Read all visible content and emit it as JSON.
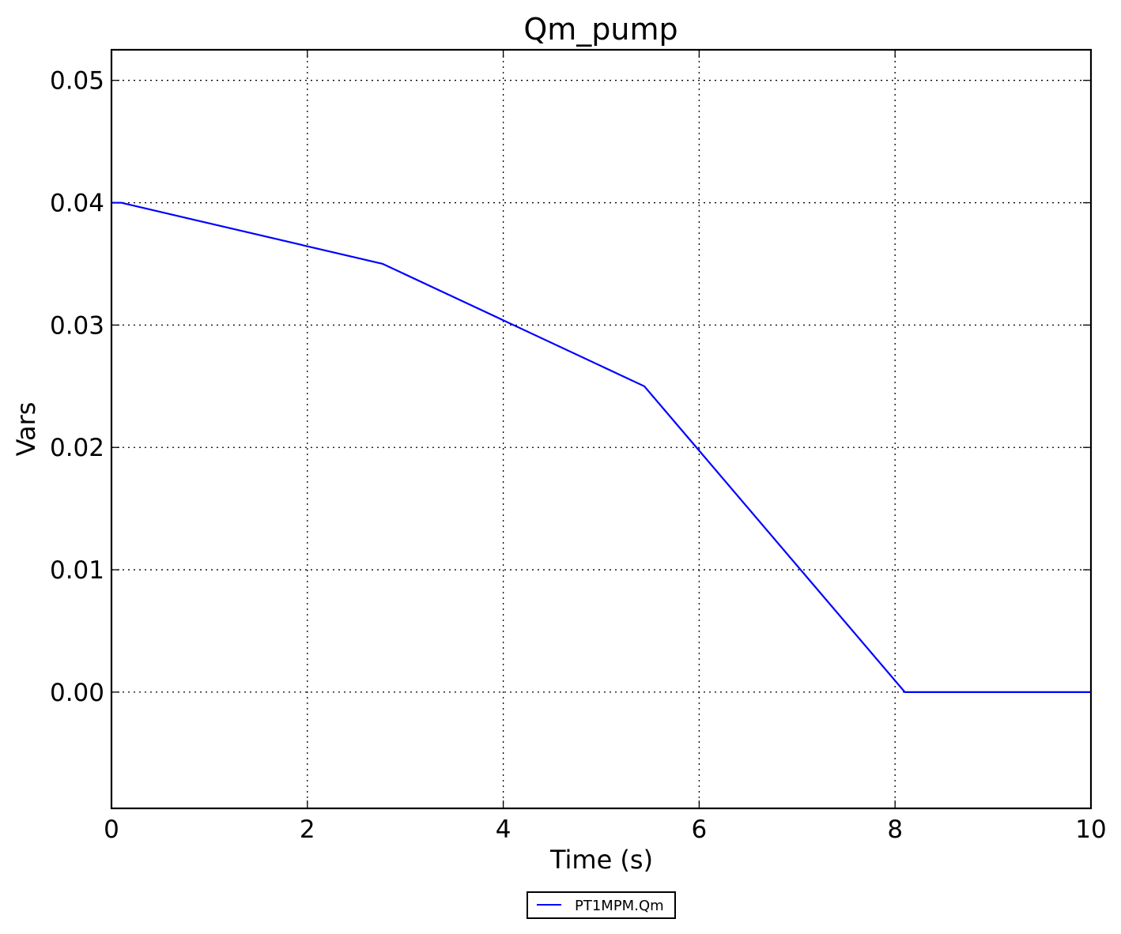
{
  "chart_data": {
    "type": "line",
    "title": "Qm_pump",
    "xlabel": "Time (s)",
    "ylabel": "Vars",
    "xlim": [
      0,
      10
    ],
    "ylim": [
      -0.0095,
      0.0525
    ],
    "xticks": [
      0,
      2,
      4,
      6,
      8,
      10
    ],
    "xtick_labels": [
      "0",
      "2",
      "4",
      "6",
      "8",
      "10"
    ],
    "yticks": [
      0.0,
      0.01,
      0.02,
      0.03,
      0.04,
      0.05
    ],
    "ytick_labels": [
      "0.00",
      "0.01",
      "0.02",
      "0.03",
      "0.04",
      "0.05"
    ],
    "grid": true,
    "legend_position": "bottom-center",
    "series": [
      {
        "name": "PT1MPM.Qm",
        "color": "#0000ff",
        "x": [
          0,
          0.1,
          2.77,
          5.44,
          8.1,
          10
        ],
        "y": [
          0.04,
          0.04,
          0.035,
          0.025,
          0.0,
          0.0
        ]
      }
    ]
  }
}
